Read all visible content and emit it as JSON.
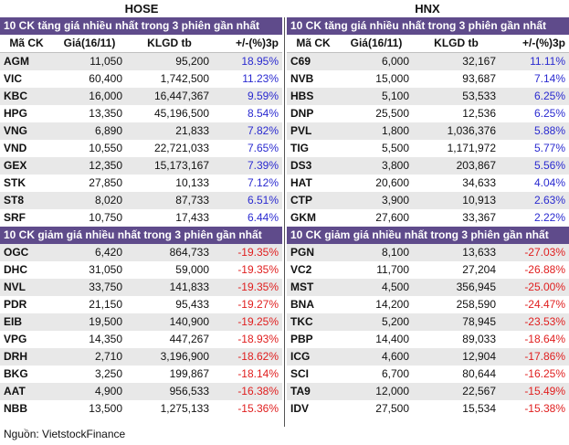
{
  "markets": [
    "HOSE",
    "HNX"
  ],
  "sections": {
    "hose_up": {
      "title": "10 CK tăng giá nhiều nhất trong 3 phiên gần nhất",
      "headers": [
        "Mã CK",
        "Giá(16/11)",
        "KLGD tb",
        "+/-(%)3p"
      ],
      "rows": [
        [
          "AGM",
          "11,050",
          "95,200",
          "18.95%"
        ],
        [
          "VIC",
          "60,400",
          "1,742,500",
          "11.23%"
        ],
        [
          "KBC",
          "16,000",
          "16,447,367",
          "9.59%"
        ],
        [
          "HPG",
          "13,350",
          "45,196,500",
          "8.54%"
        ],
        [
          "VNG",
          "6,890",
          "21,833",
          "7.82%"
        ],
        [
          "VND",
          "10,550",
          "22,721,033",
          "7.65%"
        ],
        [
          "GEX",
          "12,350",
          "15,173,167",
          "7.39%"
        ],
        [
          "STK",
          "27,850",
          "10,133",
          "7.12%"
        ],
        [
          "ST8",
          "8,020",
          "87,733",
          "6.51%"
        ],
        [
          "SRF",
          "10,750",
          "17,433",
          "6.44%"
        ]
      ]
    },
    "hnx_up": {
      "title": "10 CK tăng giá nhiều nhất trong 3 phiên gần nhất",
      "headers": [
        "Mã CK",
        "Giá(16/11)",
        "KLGD tb",
        "+/-(%)3p"
      ],
      "rows": [
        [
          "C69",
          "6,000",
          "32,167",
          "11.11%"
        ],
        [
          "NVB",
          "15,000",
          "93,687",
          "7.14%"
        ],
        [
          "HBS",
          "5,100",
          "53,533",
          "6.25%"
        ],
        [
          "DNP",
          "25,500",
          "12,536",
          "6.25%"
        ],
        [
          "PVL",
          "1,800",
          "1,036,376",
          "5.88%"
        ],
        [
          "TIG",
          "5,500",
          "1,171,972",
          "5.77%"
        ],
        [
          "DS3",
          "3,800",
          "203,867",
          "5.56%"
        ],
        [
          "HAT",
          "20,600",
          "34,633",
          "4.04%"
        ],
        [
          "CTP",
          "3,900",
          "10,913",
          "2.63%"
        ],
        [
          "GKM",
          "27,600",
          "33,367",
          "2.22%"
        ]
      ]
    },
    "hose_down": {
      "title": "10 CK giảm giá nhiều nhất trong 3 phiên gần nhất",
      "rows": [
        [
          "OGC",
          "6,420",
          "864,733",
          "-19.35%"
        ],
        [
          "DHC",
          "31,050",
          "59,000",
          "-19.35%"
        ],
        [
          "NVL",
          "33,750",
          "141,833",
          "-19.35%"
        ],
        [
          "PDR",
          "21,150",
          "95,433",
          "-19.27%"
        ],
        [
          "EIB",
          "19,500",
          "140,900",
          "-19.25%"
        ],
        [
          "VPG",
          "14,350",
          "447,267",
          "-18.93%"
        ],
        [
          "DRH",
          "2,710",
          "3,196,900",
          "-18.62%"
        ],
        [
          "BKG",
          "3,250",
          "199,867",
          "-18.14%"
        ],
        [
          "AAT",
          "4,900",
          "956,533",
          "-16.38%"
        ],
        [
          "NBB",
          "13,500",
          "1,275,133",
          "-15.36%"
        ]
      ]
    },
    "hnx_down": {
      "title": "10 CK giảm giá nhiều nhất trong 3 phiên gần nhất",
      "rows": [
        [
          "PGN",
          "8,100",
          "13,633",
          "-27.03%"
        ],
        [
          "VC2",
          "11,700",
          "27,204",
          "-26.88%"
        ],
        [
          "MST",
          "4,500",
          "356,945",
          "-25.00%"
        ],
        [
          "BNA",
          "14,200",
          "258,590",
          "-24.47%"
        ],
        [
          "TKC",
          "5,200",
          "78,945",
          "-23.53%"
        ],
        [
          "PBP",
          "14,400",
          "89,033",
          "-18.64%"
        ],
        [
          "ICG",
          "4,600",
          "12,904",
          "-17.86%"
        ],
        [
          "SCI",
          "6,700",
          "80,644",
          "-16.25%"
        ],
        [
          "TA9",
          "12,000",
          "22,567",
          "-15.49%"
        ],
        [
          "IDV",
          "27,500",
          "15,534",
          "-15.38%"
        ]
      ]
    }
  },
  "source": "Nguồn: VietstockFinance",
  "colors": {
    "header_bg": "#5f4b8b",
    "positive": "#2a2ad0",
    "negative": "#e01e1e",
    "stripe": "#e8e8e8"
  }
}
